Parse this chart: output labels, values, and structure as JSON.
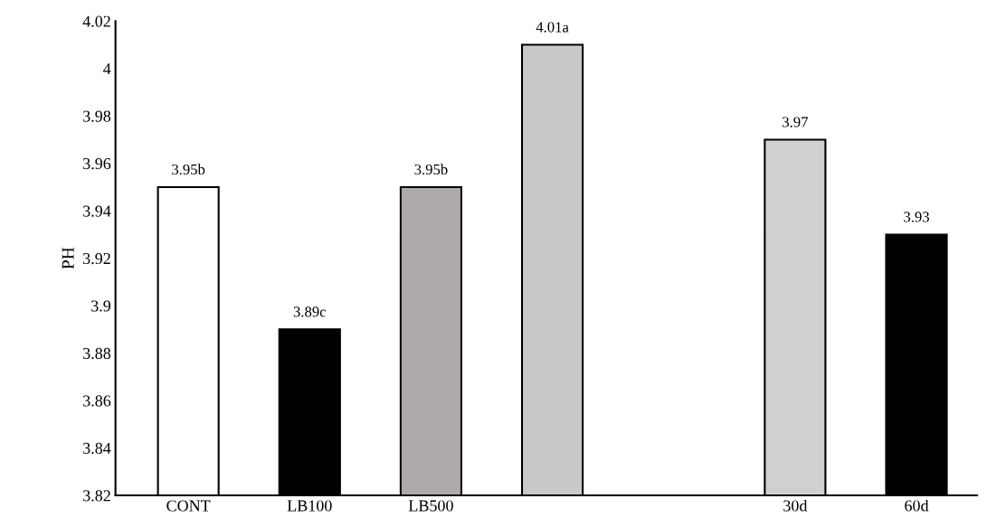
{
  "chart_data": {
    "type": "bar",
    "ylabel": "PH",
    "categories": [
      "CONT",
      "LB100",
      "LB500",
      null,
      null,
      "30d",
      "60d"
    ],
    "values": [
      3.95,
      3.89,
      3.95,
      4.01,
      null,
      3.97,
      3.93
    ],
    "colors": [
      "#ffffff",
      "#000000",
      "#aeaaaa",
      "#c9c9c9",
      "#ffffff",
      "#d0d0d0",
      "#000000"
    ],
    "value_labels": [
      "3.95b",
      "3.89c",
      "3.95b",
      "4.01a",
      null,
      "3.97",
      "3.93"
    ],
    "ylim": [
      3.82,
      4.02
    ],
    "yticks": [
      3.82,
      3.84,
      3.86,
      3.88,
      3.9,
      3.92,
      3.94,
      3.96,
      3.98,
      4,
      4.02
    ],
    "grid": false,
    "legend": false
  }
}
